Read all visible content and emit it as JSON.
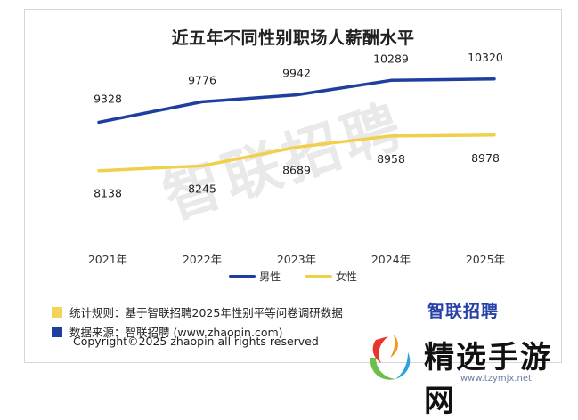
{
  "chart_data": {
    "type": "line",
    "title": "近五年不同性别职场人薪酬水平",
    "categories": [
      "2021年",
      "2022年",
      "2023年",
      "2024年",
      "2025年"
    ],
    "series": [
      {
        "name": "男性",
        "color": "#1f3f9e",
        "values": [
          9328,
          9776,
          9942,
          10289,
          10320
        ]
      },
      {
        "name": "女性",
        "color": "#f0d04a",
        "values": [
          8138,
          8245,
          8689,
          8958,
          8978
        ]
      }
    ],
    "xlabel": "",
    "ylabel": "",
    "ylim": [
      7400,
      10700
    ],
    "grid": false,
    "legend_position": "bottom"
  },
  "watermark": "智联招聘",
  "notes": {
    "rule_text": "统计规则：基于智联招聘2025年性别平等问卷调研数据",
    "rule_color": "#f3d35a",
    "source_text": "数据来源：智联招聘 (www.zhaopin.com)",
    "source_color": "#1f3f9e"
  },
  "copyright": "Copyright©2025 zhaopin all rights reserved",
  "brand": "智联招聘",
  "overlay": {
    "name": "精选手游网",
    "url": "www.tzymjx.net"
  }
}
